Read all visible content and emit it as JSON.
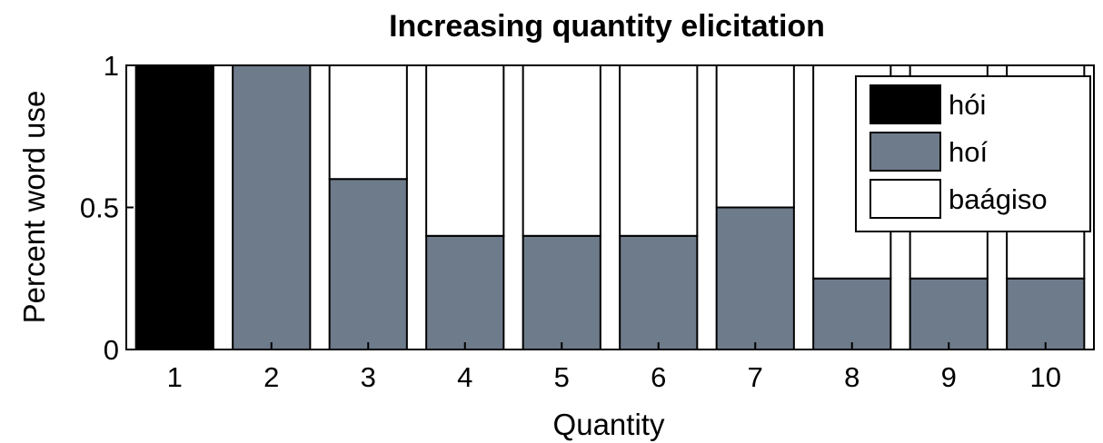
{
  "chart_data": {
    "type": "bar",
    "stacked": true,
    "title": "Increasing quantity elicitation",
    "xlabel": "Quantity",
    "ylabel": "Percent word use",
    "categories": [
      "1",
      "2",
      "3",
      "4",
      "5",
      "6",
      "7",
      "8",
      "9",
      "10"
    ],
    "ylim": [
      0,
      1
    ],
    "yticks": [
      "0",
      "0.5",
      "1"
    ],
    "grid": false,
    "legend_position": "top-right",
    "series": [
      {
        "name": "hói",
        "color": "#000000",
        "values": [
          1,
          0,
          0,
          0,
          0,
          0,
          0,
          0,
          0,
          0
        ]
      },
      {
        "name": "hoí",
        "color": "#6e7b8b",
        "values": [
          0,
          1,
          0.6,
          0.4,
          0.4,
          0.4,
          0.5,
          0.25,
          0.25,
          0.25
        ]
      },
      {
        "name": "baágiso",
        "color": "#ffffff",
        "values": [
          0,
          0,
          0.4,
          0.6,
          0.6,
          0.6,
          0.5,
          0.75,
          0.75,
          0.75
        ]
      }
    ]
  }
}
